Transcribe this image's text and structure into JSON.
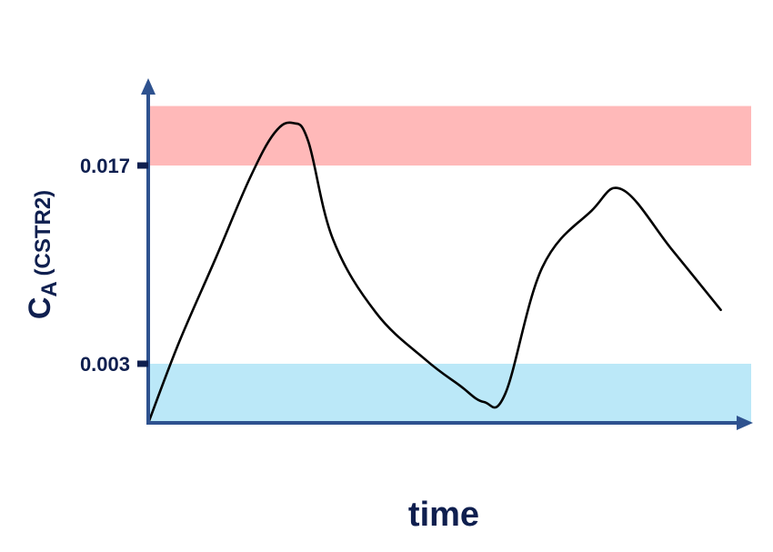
{
  "chart_data": {
    "type": "line",
    "xlabel": "time",
    "ylabel": {
      "main": "C",
      "subscript": "A",
      "suffix": " (CSTR2)"
    },
    "y_ticks": [
      {
        "value": 0.003,
        "label": "0.003"
      },
      {
        "value": 0.017,
        "label": "0.017"
      }
    ],
    "ylim": [
      -0.0012,
      0.0204
    ],
    "xlim": [
      0,
      1
    ],
    "bands": [
      {
        "name": "upper",
        "from": 0.017,
        "to": 0.0212,
        "color": "#ffb9b9"
      },
      {
        "name": "lower",
        "from": -0.0012,
        "to": 0.003,
        "color": "#bbe8f8"
      }
    ],
    "series": [
      {
        "color": "#000000",
        "x": [
          0.0,
          0.05,
          0.11,
          0.165,
          0.205,
          0.235,
          0.26,
          0.3,
          0.37,
          0.45,
          0.505,
          0.545,
          0.58,
          0.64,
          0.72,
          0.77,
          0.85,
          0.93
        ],
        "y": [
          -0.0012,
          0.0045,
          0.0105,
          0.0161,
          0.0193,
          0.02,
          0.0187,
          0.0118,
          0.0066,
          0.0033,
          0.0015,
          0.0003,
          0.0009,
          0.0098,
          0.0138,
          0.0153,
          0.0111,
          0.0068
        ]
      }
    ],
    "axis_color": "#2e528f",
    "grid": false,
    "legend": "none"
  }
}
